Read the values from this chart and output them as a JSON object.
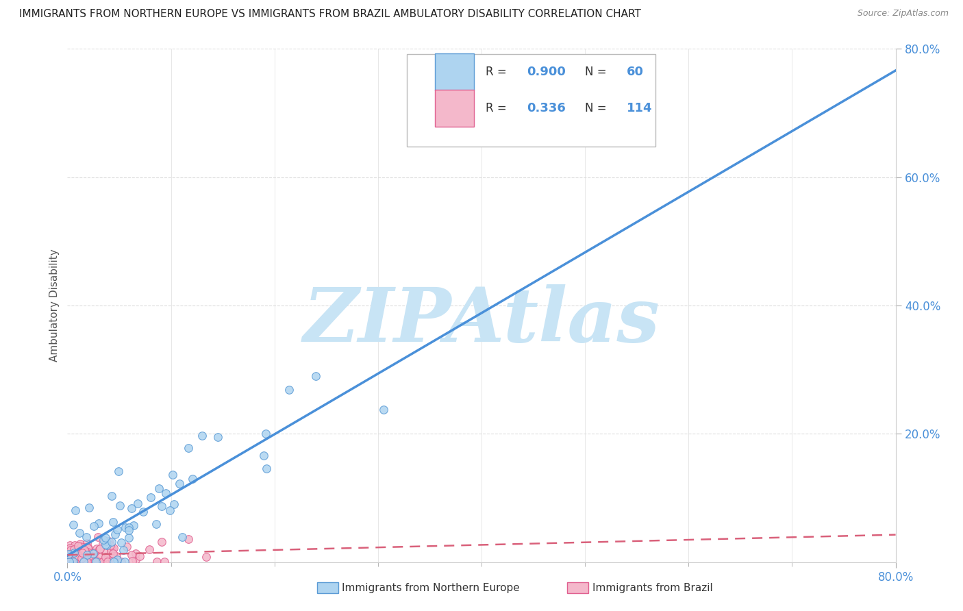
{
  "title": "IMMIGRANTS FROM NORTHERN EUROPE VS IMMIGRANTS FROM BRAZIL AMBULATORY DISABILITY CORRELATION CHART",
  "source": "Source: ZipAtlas.com",
  "ylabel": "Ambulatory Disability",
  "xlim": [
    0.0,
    0.8
  ],
  "ylim": [
    0.0,
    0.8
  ],
  "blue_R": 0.9,
  "blue_N": 60,
  "pink_R": 0.336,
  "pink_N": 114,
  "blue_color": "#AED4F0",
  "pink_color": "#F4B8CB",
  "blue_edge_color": "#5B9BD5",
  "pink_edge_color": "#E06090",
  "blue_line_color": "#4A90D9",
  "pink_line_color": "#D9607A",
  "watermark": "ZIPAtlas",
  "watermark_color": "#C8E4F5",
  "legend_label_blue": "Immigrants from Northern Europe",
  "legend_label_pink": "Immigrants from Brazil",
  "background_color": "#ffffff",
  "grid_color": "#DDDDDD",
  "title_color": "#222222",
  "axis_label_color": "#555555",
  "tick_color": "#4A90D9"
}
